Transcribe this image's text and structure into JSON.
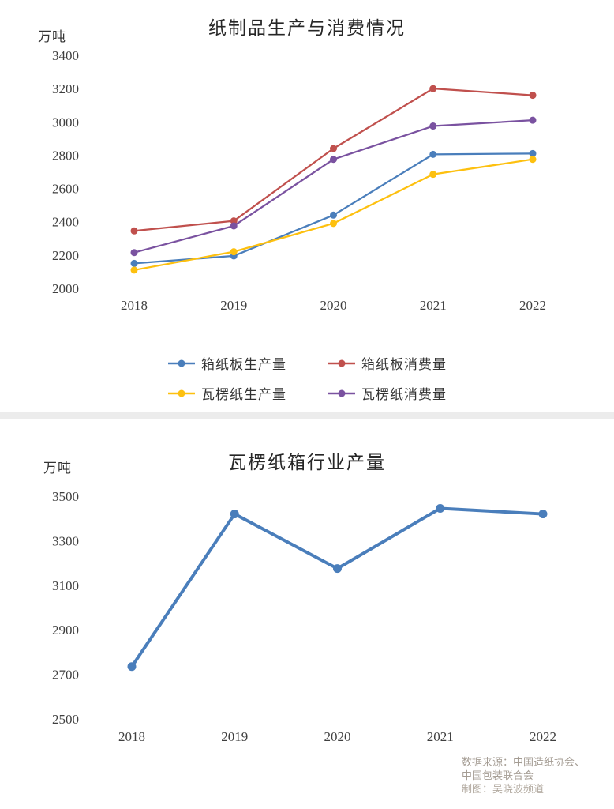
{
  "footer": {
    "lines": [
      "数据来源：中国造纸协会、",
      "中国包装联合会",
      "制图：吴晓波频道"
    ]
  },
  "chart_data": [
    {
      "type": "line",
      "title": "纸制品生产与消费情况",
      "ylabel": "万吨",
      "xlabel": "",
      "categories": [
        "2018",
        "2019",
        "2020",
        "2021",
        "2022"
      ],
      "ylim": [
        2000,
        3400
      ],
      "ytick_step": 200,
      "grid": false,
      "legend_position": "bottom",
      "series": [
        {
          "name": "箱纸板生产量",
          "color": "#4a7ebb",
          "values": [
            2150,
            2195,
            2440,
            2805,
            2810
          ]
        },
        {
          "name": "箱纸板消费量",
          "color": "#c0504d",
          "values": [
            2345,
            2405,
            2840,
            3200,
            3160
          ]
        },
        {
          "name": "瓦楞纸生产量",
          "color": "#fdc00f",
          "values": [
            2110,
            2220,
            2390,
            2685,
            2775
          ]
        },
        {
          "name": "瓦楞纸消费量",
          "color": "#7a52a0",
          "values": [
            2215,
            2375,
            2775,
            2975,
            3010
          ]
        }
      ]
    },
    {
      "type": "line",
      "title": "瓦楞纸箱行业产量",
      "ylabel": "万吨",
      "xlabel": "",
      "categories": [
        "2018",
        "2019",
        "2020",
        "2021",
        "2022"
      ],
      "ylim": [
        2500,
        3500
      ],
      "ytick_step": 200,
      "grid": false,
      "legend_position": "none",
      "series": [
        {
          "name": "瓦楞纸箱行业产量",
          "color": "#4a7ebb",
          "values": [
            2735,
            3420,
            3175,
            3445,
            3420
          ]
        }
      ]
    }
  ]
}
